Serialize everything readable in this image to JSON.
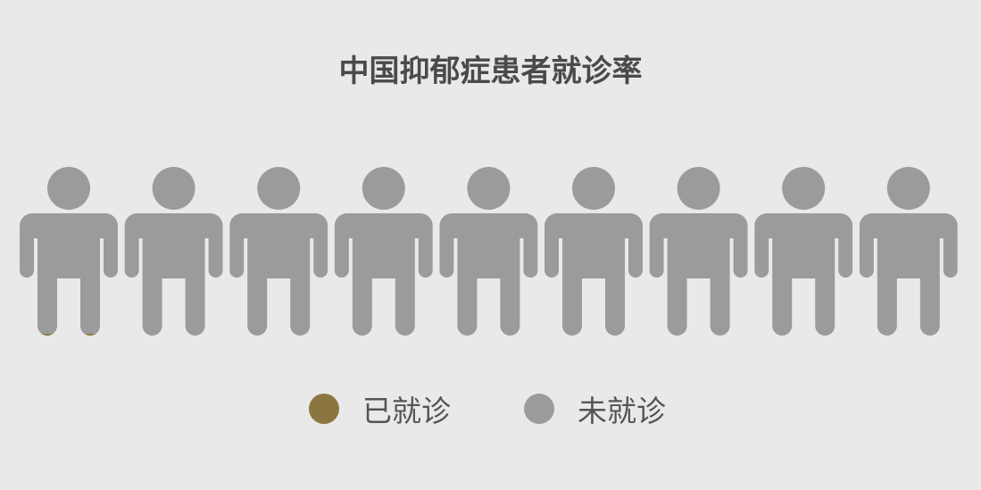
{
  "chart_data": {
    "type": "pictogram",
    "title": "中国抑郁症患者就诊率",
    "total_icons": 9,
    "treated_icons": 0.72,
    "series": [
      {
        "name": "已就诊",
        "value": 0.72,
        "color": "#8c7640"
      },
      {
        "name": "未就诊",
        "value": 8.28,
        "color": "#9b9b9b"
      }
    ],
    "legend_position": "bottom"
  }
}
